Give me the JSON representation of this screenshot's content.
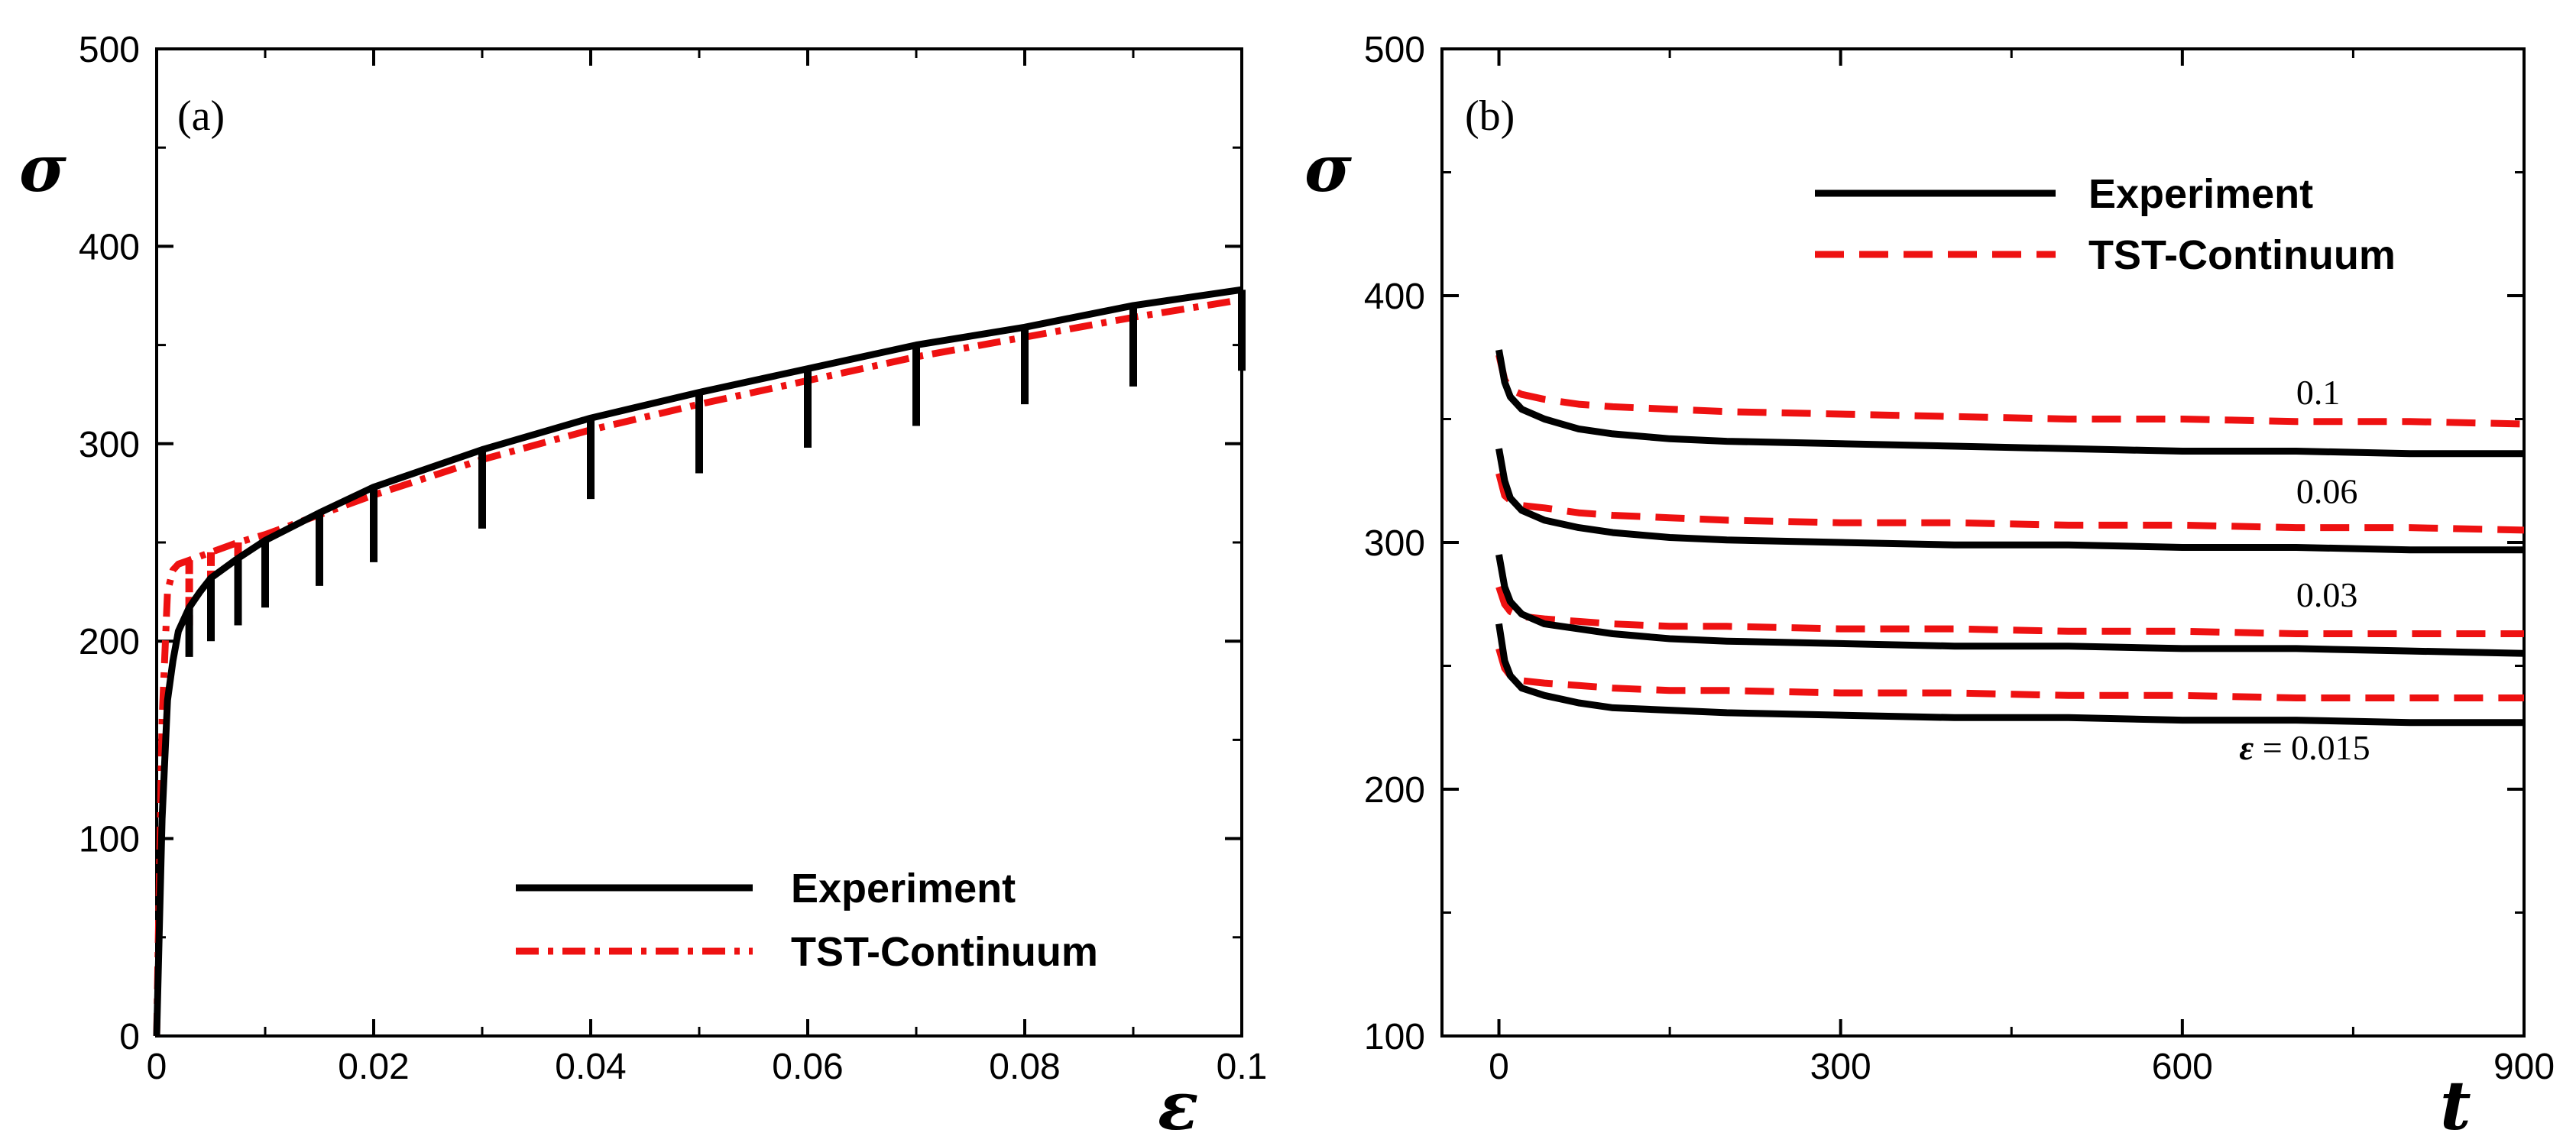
{
  "colors": {
    "experiment": "#000000",
    "model": "#ee1111",
    "axis": "#000000"
  },
  "chart_data": [
    {
      "type": "line",
      "panel_label": "(a)",
      "xlabel": "ε",
      "ylabel": "σ",
      "xlim": [
        0,
        0.1
      ],
      "ylim": [
        0,
        500
      ],
      "xticks": [
        0,
        0.02,
        0.04,
        0.06,
        0.08,
        0.1
      ],
      "xtick_labels": [
        "0",
        "0.02",
        "0.04",
        "0.06",
        "0.08",
        "0.1"
      ],
      "yticks": [
        0,
        100,
        200,
        300,
        400,
        500
      ],
      "ytick_labels": [
        "0",
        "100",
        "200",
        "300",
        "400",
        "500"
      ],
      "grid": false,
      "legend_position": "bottom-right",
      "series": [
        {
          "name": "Experiment",
          "style": "solid",
          "x": [
            0,
            0.0005,
            0.001,
            0.0015,
            0.002,
            0.003,
            0.004,
            0.005,
            0.0075,
            0.01,
            0.015,
            0.02,
            0.03,
            0.04,
            0.05,
            0.06,
            0.07,
            0.08,
            0.09,
            0.1
          ],
          "y": [
            0,
            110,
            170,
            190,
            205,
            217,
            225,
            232,
            242,
            251,
            265,
            278,
            297,
            313,
            326,
            338,
            350,
            359,
            370,
            378
          ],
          "relaxation_drops": [
            [
              0.003,
              192
            ],
            [
              0.005,
              200
            ],
            [
              0.0075,
              208
            ],
            [
              0.01,
              217
            ],
            [
              0.015,
              228
            ],
            [
              0.02,
              240
            ],
            [
              0.03,
              257
            ],
            [
              0.04,
              272
            ],
            [
              0.05,
              285
            ],
            [
              0.06,
              298
            ],
            [
              0.07,
              309
            ],
            [
              0.08,
              320
            ],
            [
              0.09,
              329
            ],
            [
              0.1,
              337
            ]
          ]
        },
        {
          "name": "TST-Continuum",
          "style": "dash-dot",
          "x": [
            0,
            0.0005,
            0.001,
            0.0015,
            0.002,
            0.003,
            0.004,
            0.005,
            0.0075,
            0.01,
            0.015,
            0.02,
            0.03,
            0.04,
            0.05,
            0.06,
            0.07,
            0.08,
            0.09,
            0.1
          ],
          "y": [
            0,
            160,
            225,
            236,
            239,
            241,
            243,
            245,
            250,
            254,
            264,
            274,
            292,
            307,
            320,
            332,
            344,
            354,
            364,
            373
          ],
          "relaxation_drops": [
            [
              0.003,
              208
            ],
            [
              0.005,
              214
            ],
            [
              0.0075,
              221
            ],
            [
              0.01,
              229
            ],
            [
              0.015,
              240
            ],
            [
              0.02,
              252
            ],
            [
              0.03,
              268
            ],
            [
              0.04,
              282
            ],
            [
              0.05,
              294
            ],
            [
              0.06,
              306
            ],
            [
              0.07,
              318
            ],
            [
              0.08,
              327
            ],
            [
              0.09,
              337
            ],
            [
              0.1,
              345
            ]
          ]
        }
      ]
    },
    {
      "type": "line",
      "panel_label": "(b)",
      "xlabel": "t",
      "ylabel": "σ",
      "xlim": [
        -50,
        900
      ],
      "ylim": [
        100,
        500
      ],
      "xticks": [
        0,
        300,
        600,
        900
      ],
      "xtick_labels": [
        "0",
        "300",
        "600",
        "900"
      ],
      "yticks": [
        100,
        200,
        300,
        400,
        500
      ],
      "ytick_labels": [
        "100",
        "200",
        "300",
        "400",
        "500"
      ],
      "grid": false,
      "legend_position": "top-right",
      "legend": [
        {
          "name": "Experiment",
          "style": "solid"
        },
        {
          "name": "TST-Continuum",
          "style": "dashed"
        }
      ],
      "annotations": [
        {
          "text": "0.1",
          "x": 700,
          "y": 356
        },
        {
          "text": "0.06",
          "x": 700,
          "y": 316
        },
        {
          "text": "0.03",
          "x": 700,
          "y": 274
        },
        {
          "eps_symbol": "ε",
          "text": " = 0.015",
          "x": 650,
          "y": 212
        }
      ],
      "series": [
        {
          "name": "Experiment",
          "strain": "0.1",
          "style": "solid",
          "x": [
            0,
            5,
            10,
            20,
            40,
            70,
            100,
            150,
            200,
            300,
            400,
            500,
            600,
            700,
            800,
            900
          ],
          "y": [
            378,
            365,
            359,
            354,
            350,
            346,
            344,
            342,
            341,
            340,
            339,
            338,
            337,
            337,
            336,
            336
          ]
        },
        {
          "name": "Experiment",
          "strain": "0.06",
          "style": "solid",
          "x": [
            0,
            5,
            10,
            20,
            40,
            70,
            100,
            150,
            200,
            300,
            400,
            500,
            600,
            700,
            800,
            900
          ],
          "y": [
            338,
            325,
            318,
            313,
            309,
            306,
            304,
            302,
            301,
            300,
            299,
            299,
            298,
            298,
            297,
            297
          ]
        },
        {
          "name": "Experiment",
          "strain": "0.03",
          "style": "solid",
          "x": [
            0,
            5,
            10,
            20,
            40,
            70,
            100,
            150,
            200,
            300,
            400,
            500,
            600,
            700,
            800,
            900
          ],
          "y": [
            295,
            282,
            276,
            271,
            267,
            265,
            263,
            261,
            260,
            259,
            258,
            258,
            257,
            257,
            256,
            255
          ]
        },
        {
          "name": "Experiment",
          "strain": "0.015",
          "style": "solid",
          "x": [
            0,
            5,
            10,
            20,
            40,
            70,
            100,
            150,
            200,
            300,
            400,
            500,
            600,
            700,
            800,
            900
          ],
          "y": [
            267,
            252,
            246,
            241,
            238,
            235,
            233,
            232,
            231,
            230,
            229,
            229,
            228,
            228,
            227,
            227
          ]
        },
        {
          "name": "TST-Continuum",
          "strain": "0.1",
          "style": "dashed",
          "x": [
            0,
            5,
            10,
            20,
            40,
            70,
            100,
            150,
            200,
            300,
            400,
            500,
            600,
            700,
            800,
            900
          ],
          "y": [
            376,
            366,
            362,
            360,
            358,
            356,
            355,
            354,
            353,
            352,
            351,
            350,
            350,
            349,
            349,
            348
          ]
        },
        {
          "name": "TST-Continuum",
          "strain": "0.06",
          "style": "dashed",
          "x": [
            0,
            5,
            10,
            20,
            40,
            70,
            100,
            150,
            200,
            300,
            400,
            500,
            600,
            700,
            800,
            900
          ],
          "y": [
            328,
            319,
            317,
            315,
            314,
            312,
            311,
            310,
            309,
            308,
            308,
            307,
            307,
            306,
            306,
            305
          ]
        },
        {
          "name": "TST-Continuum",
          "strain": "0.03",
          "style": "dashed",
          "x": [
            0,
            5,
            10,
            20,
            40,
            70,
            100,
            150,
            200,
            300,
            400,
            500,
            600,
            700,
            800,
            900
          ],
          "y": [
            282,
            275,
            272,
            270,
            269,
            268,
            267,
            266,
            266,
            265,
            265,
            264,
            264,
            263,
            263,
            263
          ]
        },
        {
          "name": "TST-Continuum",
          "strain": "0.015",
          "style": "dashed",
          "x": [
            0,
            5,
            10,
            20,
            40,
            70,
            100,
            150,
            200,
            300,
            400,
            500,
            600,
            700,
            800,
            900
          ],
          "y": [
            257,
            249,
            246,
            244,
            243,
            242,
            241,
            240,
            240,
            239,
            239,
            238,
            238,
            237,
            237,
            237
          ]
        }
      ]
    }
  ]
}
